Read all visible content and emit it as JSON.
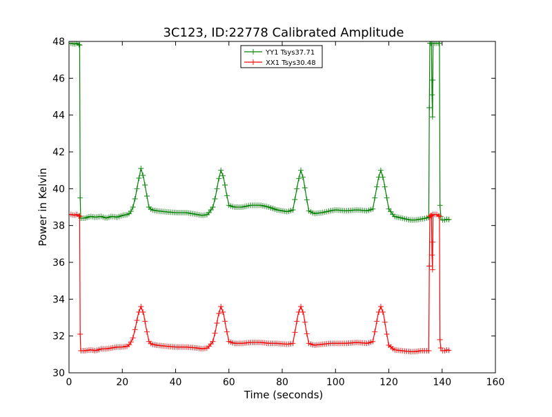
{
  "chart_data": {
    "type": "line",
    "title": "3C123, ID:22778 Calibrated Amplitude",
    "xlabel": "Time (seconds)",
    "ylabel": "Power in Kelvin",
    "xlim": [
      0,
      160
    ],
    "ylim": [
      30,
      48
    ],
    "xticks": [
      0,
      20,
      40,
      60,
      80,
      100,
      120,
      140,
      160
    ],
    "yticks": [
      30,
      32,
      34,
      36,
      38,
      40,
      42,
      44,
      46,
      48
    ],
    "grid": false,
    "legend": {
      "position": "top-center"
    },
    "marker": "plus",
    "series": [
      {
        "name": "YY1 Tsys37.71",
        "color": "#008000",
        "points": [
          [
            0,
            47.9
          ],
          [
            1,
            47.9
          ],
          [
            2,
            47.85
          ],
          [
            3,
            47.9
          ],
          [
            4,
            47.8
          ],
          [
            4.2,
            39.5
          ],
          [
            4.4,
            38.4
          ],
          [
            6,
            38.4
          ],
          [
            8,
            38.5
          ],
          [
            10,
            38.45
          ],
          [
            12,
            38.5
          ],
          [
            14,
            38.4
          ],
          [
            16,
            38.5
          ],
          [
            18,
            38.45
          ],
          [
            20,
            38.55
          ],
          [
            22,
            38.6
          ],
          [
            23,
            38.7
          ],
          [
            24,
            39.0
          ],
          [
            25,
            39.6
          ],
          [
            26,
            40.4
          ],
          [
            27,
            41.1
          ],
          [
            28,
            40.6
          ],
          [
            29,
            39.8
          ],
          [
            30,
            39.0
          ],
          [
            31,
            38.85
          ],
          [
            33,
            38.8
          ],
          [
            36,
            38.75
          ],
          [
            40,
            38.7
          ],
          [
            44,
            38.7
          ],
          [
            48,
            38.6
          ],
          [
            50,
            38.55
          ],
          [
            52,
            38.6
          ],
          [
            54,
            39.0
          ],
          [
            55,
            39.6
          ],
          [
            56,
            40.4
          ],
          [
            57,
            41.0
          ],
          [
            58,
            40.6
          ],
          [
            59,
            39.8
          ],
          [
            60,
            39.1
          ],
          [
            62,
            39.0
          ],
          [
            65,
            39.0
          ],
          [
            68,
            39.1
          ],
          [
            72,
            39.1
          ],
          [
            75,
            39.0
          ],
          [
            78,
            38.85
          ],
          [
            82,
            38.75
          ],
          [
            84,
            38.85
          ],
          [
            85,
            39.6
          ],
          [
            86,
            40.4
          ],
          [
            87,
            41.0
          ],
          [
            88,
            40.5
          ],
          [
            89,
            39.6
          ],
          [
            90,
            38.8
          ],
          [
            92,
            38.65
          ],
          [
            95,
            38.7
          ],
          [
            98,
            38.8
          ],
          [
            100,
            38.85
          ],
          [
            104,
            38.8
          ],
          [
            108,
            38.85
          ],
          [
            112,
            38.8
          ],
          [
            114,
            38.9
          ],
          [
            115,
            39.7
          ],
          [
            116,
            40.5
          ],
          [
            117,
            41.0
          ],
          [
            118,
            40.5
          ],
          [
            119,
            39.7
          ],
          [
            120,
            38.9
          ],
          [
            122,
            38.5
          ],
          [
            125,
            38.4
          ],
          [
            128,
            38.3
          ],
          [
            130,
            38.3
          ],
          [
            132,
            38.35
          ],
          [
            134,
            38.4
          ],
          [
            135,
            38.45
          ],
          [
            135.2,
            44.4
          ],
          [
            135.4,
            47.9
          ],
          [
            136,
            47.9
          ],
          [
            136.2,
            45.1
          ],
          [
            136.4,
            43.9
          ],
          [
            136.6,
            47.9
          ],
          [
            138,
            47.9
          ],
          [
            139,
            47.9
          ],
          [
            139.2,
            39.1
          ],
          [
            139.6,
            38.3
          ],
          [
            141,
            38.3
          ],
          [
            142,
            38.35
          ],
          [
            143,
            38.3
          ]
        ]
      },
      {
        "name": "XX1 Tsys30.48",
        "color": "#ff0000",
        "points": [
          [
            0,
            38.6
          ],
          [
            1,
            38.6
          ],
          [
            2,
            38.55
          ],
          [
            3,
            38.6
          ],
          [
            4,
            38.5
          ],
          [
            4.2,
            32.1
          ],
          [
            4.4,
            31.2
          ],
          [
            6,
            31.2
          ],
          [
            8,
            31.25
          ],
          [
            10,
            31.2
          ],
          [
            12,
            31.3
          ],
          [
            14,
            31.3
          ],
          [
            16,
            31.35
          ],
          [
            18,
            31.4
          ],
          [
            20,
            31.4
          ],
          [
            22,
            31.45
          ],
          [
            23,
            31.6
          ],
          [
            24,
            31.9
          ],
          [
            25,
            32.5
          ],
          [
            26,
            33.2
          ],
          [
            27,
            33.6
          ],
          [
            28,
            33.2
          ],
          [
            29,
            32.4
          ],
          [
            30,
            31.7
          ],
          [
            31,
            31.55
          ],
          [
            33,
            31.5
          ],
          [
            36,
            31.45
          ],
          [
            40,
            31.4
          ],
          [
            44,
            31.4
          ],
          [
            48,
            31.35
          ],
          [
            50,
            31.3
          ],
          [
            52,
            31.35
          ],
          [
            54,
            31.7
          ],
          [
            55,
            32.3
          ],
          [
            56,
            33.1
          ],
          [
            57,
            33.6
          ],
          [
            58,
            33.2
          ],
          [
            59,
            32.4
          ],
          [
            60,
            31.7
          ],
          [
            62,
            31.6
          ],
          [
            65,
            31.6
          ],
          [
            68,
            31.65
          ],
          [
            72,
            31.65
          ],
          [
            75,
            31.6
          ],
          [
            78,
            31.6
          ],
          [
            82,
            31.55
          ],
          [
            84,
            31.6
          ],
          [
            85,
            32.4
          ],
          [
            86,
            33.2
          ],
          [
            87,
            33.6
          ],
          [
            88,
            33.2
          ],
          [
            89,
            32.3
          ],
          [
            90,
            31.6
          ],
          [
            92,
            31.5
          ],
          [
            95,
            31.55
          ],
          [
            98,
            31.6
          ],
          [
            100,
            31.6
          ],
          [
            104,
            31.6
          ],
          [
            108,
            31.65
          ],
          [
            112,
            31.6
          ],
          [
            114,
            31.7
          ],
          [
            115,
            32.4
          ],
          [
            116,
            33.2
          ],
          [
            117,
            33.6
          ],
          [
            118,
            33.2
          ],
          [
            119,
            32.3
          ],
          [
            120,
            31.5
          ],
          [
            122,
            31.25
          ],
          [
            125,
            31.2
          ],
          [
            128,
            31.15
          ],
          [
            130,
            31.15
          ],
          [
            132,
            31.2
          ],
          [
            134,
            31.2
          ],
          [
            135,
            31.2
          ],
          [
            135.2,
            35.8
          ],
          [
            135.4,
            38.5
          ],
          [
            136,
            38.55
          ],
          [
            136.2,
            36.4
          ],
          [
            136.4,
            35.6
          ],
          [
            136.6,
            38.6
          ],
          [
            138,
            38.6
          ],
          [
            139,
            38.5
          ],
          [
            139.2,
            31.8
          ],
          [
            139.6,
            31.2
          ],
          [
            141,
            31.2
          ],
          [
            142,
            31.25
          ],
          [
            143,
            31.2
          ]
        ]
      }
    ]
  }
}
